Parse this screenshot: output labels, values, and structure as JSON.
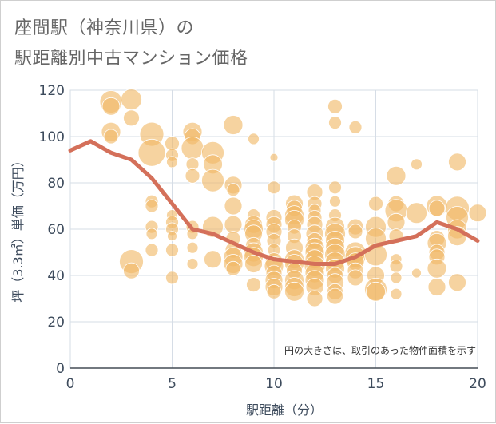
{
  "title_line1": "座間駅（神奈川県）の",
  "title_line2": "駅距離別中古マンション価格",
  "chart_data": {
    "type": "scatter",
    "xlabel": "駅距離（分）",
    "ylabel": "坪（3.3㎡）単価（万円）",
    "xlim": [
      0,
      20
    ],
    "ylim": [
      0,
      120
    ],
    "xticks": [
      0,
      5,
      10,
      15,
      20
    ],
    "yticks": [
      0,
      20,
      40,
      60,
      80,
      100,
      120
    ],
    "grid": true,
    "annotation": "円の大きさは、取引のあった物件面積を示す",
    "colors": {
      "bubble": "#f0b866",
      "line": "#d4705a",
      "grid": "#d6dde6"
    },
    "series": [
      {
        "type": "line",
        "points": [
          [
            0,
            94
          ],
          [
            1,
            98
          ],
          [
            2,
            93
          ],
          [
            3,
            90
          ],
          [
            4,
            82
          ],
          [
            5,
            71
          ],
          [
            6,
            60
          ],
          [
            7,
            58
          ],
          [
            8,
            54
          ],
          [
            9,
            50
          ],
          [
            10,
            47
          ],
          [
            11,
            46
          ],
          [
            12,
            45
          ],
          [
            13,
            45
          ],
          [
            14,
            48
          ],
          [
            15,
            53
          ],
          [
            16,
            55
          ],
          [
            17,
            57
          ],
          [
            18,
            63
          ],
          [
            19,
            60
          ],
          [
            20,
            55
          ]
        ]
      },
      {
        "type": "bubble",
        "points": [
          [
            2,
            115,
            14
          ],
          [
            2,
            113,
            11
          ],
          [
            2,
            102,
            12
          ],
          [
            2,
            100,
            9
          ],
          [
            3,
            116,
            13
          ],
          [
            3,
            108,
            10
          ],
          [
            3,
            46,
            15
          ],
          [
            3,
            42,
            10
          ],
          [
            4,
            101,
            15
          ],
          [
            4,
            93,
            17
          ],
          [
            4,
            72,
            8
          ],
          [
            4,
            70,
            8
          ],
          [
            4,
            61,
            8
          ],
          [
            4,
            58,
            7
          ],
          [
            4,
            51,
            8
          ],
          [
            5,
            97,
            9
          ],
          [
            5,
            92,
            8
          ],
          [
            5,
            89,
            7
          ],
          [
            5,
            66,
            7
          ],
          [
            5,
            63,
            8
          ],
          [
            5,
            60,
            8
          ],
          [
            5,
            57,
            6
          ],
          [
            5,
            51,
            8
          ],
          [
            5,
            39,
            8
          ],
          [
            6,
            102,
            12
          ],
          [
            6,
            100,
            10
          ],
          [
            6,
            95,
            14
          ],
          [
            6,
            88,
            8
          ],
          [
            6,
            83,
            9
          ],
          [
            6,
            61,
            8
          ],
          [
            6,
            58,
            7
          ],
          [
            6,
            52,
            7
          ],
          [
            6,
            45,
            7
          ],
          [
            7,
            93,
            14
          ],
          [
            7,
            88,
            12
          ],
          [
            7,
            81,
            14
          ],
          [
            7,
            61,
            13
          ],
          [
            7,
            47,
            11
          ],
          [
            8,
            105,
            12
          ],
          [
            8,
            79,
            11
          ],
          [
            8,
            77,
            8
          ],
          [
            8,
            70,
            11
          ],
          [
            8,
            62,
            11
          ],
          [
            8,
            56,
            9
          ],
          [
            8,
            51,
            10
          ],
          [
            8,
            48,
            12
          ],
          [
            8,
            45,
            12
          ],
          [
            8,
            43,
            9
          ],
          [
            9,
            99,
            7
          ],
          [
            9,
            66,
            8
          ],
          [
            9,
            62,
            11
          ],
          [
            9,
            60,
            12
          ],
          [
            9,
            58,
            11
          ],
          [
            9,
            53,
            10
          ],
          [
            9,
            50,
            12
          ],
          [
            9,
            48,
            12
          ],
          [
            9,
            45,
            11
          ],
          [
            9,
            36,
            9
          ],
          [
            10,
            91,
            5
          ],
          [
            10,
            78,
            8
          ],
          [
            10,
            65,
            10
          ],
          [
            10,
            62,
            10
          ],
          [
            10,
            59,
            10
          ],
          [
            10,
            55,
            9
          ],
          [
            10,
            51,
            8
          ],
          [
            10,
            46,
            11
          ],
          [
            10,
            44,
            12
          ],
          [
            10,
            41,
            10
          ],
          [
            10,
            38,
            11
          ],
          [
            10,
            35,
            11
          ],
          [
            10,
            33,
            9
          ],
          [
            11,
            71,
            11
          ],
          [
            11,
            69,
            10
          ],
          [
            11,
            66,
            12
          ],
          [
            11,
            64,
            12
          ],
          [
            11,
            61,
            9
          ],
          [
            11,
            57,
            9
          ],
          [
            11,
            52,
            11
          ],
          [
            11,
            47,
            12
          ],
          [
            11,
            45,
            12
          ],
          [
            11,
            42,
            10
          ],
          [
            11,
            38,
            12
          ],
          [
            11,
            35,
            12
          ],
          [
            11,
            33,
            12
          ],
          [
            12,
            76,
            10
          ],
          [
            12,
            71,
            9
          ],
          [
            12,
            68,
            8
          ],
          [
            12,
            65,
            9
          ],
          [
            12,
            62,
            10
          ],
          [
            12,
            58,
            11
          ],
          [
            12,
            55,
            10
          ],
          [
            12,
            52,
            12
          ],
          [
            12,
            50,
            12
          ],
          [
            12,
            47,
            12
          ],
          [
            12,
            44,
            13
          ],
          [
            12,
            41,
            12
          ],
          [
            12,
            38,
            12
          ],
          [
            12,
            35,
            11
          ],
          [
            12,
            30,
            10
          ],
          [
            13,
            113,
            9
          ],
          [
            13,
            106,
            8
          ],
          [
            13,
            78,
            8
          ],
          [
            13,
            72,
            7
          ],
          [
            13,
            66,
            8
          ],
          [
            13,
            61,
            12
          ],
          [
            13,
            58,
            13
          ],
          [
            13,
            55,
            12
          ],
          [
            13,
            52,
            12
          ],
          [
            13,
            49,
            13
          ],
          [
            13,
            46,
            12
          ],
          [
            13,
            43,
            12
          ],
          [
            13,
            40,
            10
          ],
          [
            13,
            37,
            11
          ],
          [
            13,
            33,
            10
          ],
          [
            13,
            31,
            10
          ],
          [
            14,
            104,
            8
          ],
          [
            14,
            61,
            10
          ],
          [
            14,
            59,
            9
          ],
          [
            14,
            50,
            13
          ],
          [
            14,
            48,
            13
          ],
          [
            14,
            46,
            11
          ],
          [
            14,
            42,
            10
          ],
          [
            14,
            39,
            10
          ],
          [
            15,
            71,
            9
          ],
          [
            15,
            61,
            13
          ],
          [
            15,
            56,
            13
          ],
          [
            15,
            49,
            14
          ],
          [
            15,
            40,
            11
          ],
          [
            15,
            34,
            14
          ],
          [
            15,
            33,
            12
          ],
          [
            16,
            83,
            12
          ],
          [
            16,
            71,
            10
          ],
          [
            16,
            68,
            14
          ],
          [
            16,
            63,
            11
          ],
          [
            16,
            57,
            9
          ],
          [
            16,
            47,
            7
          ],
          [
            16,
            44,
            8
          ],
          [
            16,
            39,
            7
          ],
          [
            16,
            32,
            7
          ],
          [
            17,
            88,
            7
          ],
          [
            17,
            67,
            13
          ],
          [
            17,
            41,
            6
          ],
          [
            18,
            70,
            13
          ],
          [
            18,
            69,
            10
          ],
          [
            18,
            56,
            10
          ],
          [
            18,
            54,
            12
          ],
          [
            18,
            50,
            10
          ],
          [
            18,
            48,
            10
          ],
          [
            18,
            43,
            12
          ],
          [
            18,
            35,
            11
          ],
          [
            19,
            89,
            11
          ],
          [
            19,
            69,
            15
          ],
          [
            19,
            65,
            14
          ],
          [
            19,
            60,
            12
          ],
          [
            19,
            57,
            12
          ],
          [
            19,
            37,
            11
          ],
          [
            20,
            67,
            11
          ]
        ]
      }
    ]
  }
}
